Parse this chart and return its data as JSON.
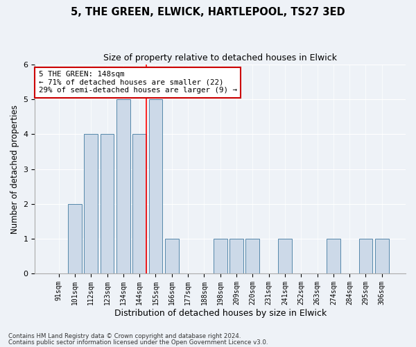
{
  "title_line1": "5, THE GREEN, ELWICK, HARTLEPOOL, TS27 3ED",
  "title_line2": "Size of property relative to detached houses in Elwick",
  "xlabel": "Distribution of detached houses by size in Elwick",
  "ylabel": "Number of detached properties",
  "categories": [
    "91sqm",
    "101sqm",
    "112sqm",
    "123sqm",
    "134sqm",
    "144sqm",
    "155sqm",
    "166sqm",
    "177sqm",
    "188sqm",
    "198sqm",
    "209sqm",
    "220sqm",
    "231sqm",
    "241sqm",
    "252sqm",
    "263sqm",
    "274sqm",
    "284sqm",
    "295sqm",
    "306sqm"
  ],
  "values": [
    0,
    2,
    4,
    4,
    5,
    4,
    5,
    1,
    0,
    0,
    1,
    1,
    1,
    0,
    1,
    0,
    0,
    1,
    0,
    1,
    1
  ],
  "bar_color": "#ccd9e8",
  "bar_edge_color": "#5588aa",
  "red_line_index": 5,
  "annotation_text": "5 THE GREEN: 148sqm\n← 71% of detached houses are smaller (22)\n29% of semi-detached houses are larger (9) →",
  "annotation_box_color": "#ffffff",
  "annotation_box_edge": "#cc0000",
  "background_color": "#eef2f7",
  "plot_bg_color": "#eef2f7",
  "ylim": [
    0,
    6
  ],
  "yticks": [
    0,
    1,
    2,
    3,
    4,
    5,
    6
  ],
  "footer_line1": "Contains HM Land Registry data © Crown copyright and database right 2024.",
  "footer_line2": "Contains public sector information licensed under the Open Government Licence v3.0."
}
